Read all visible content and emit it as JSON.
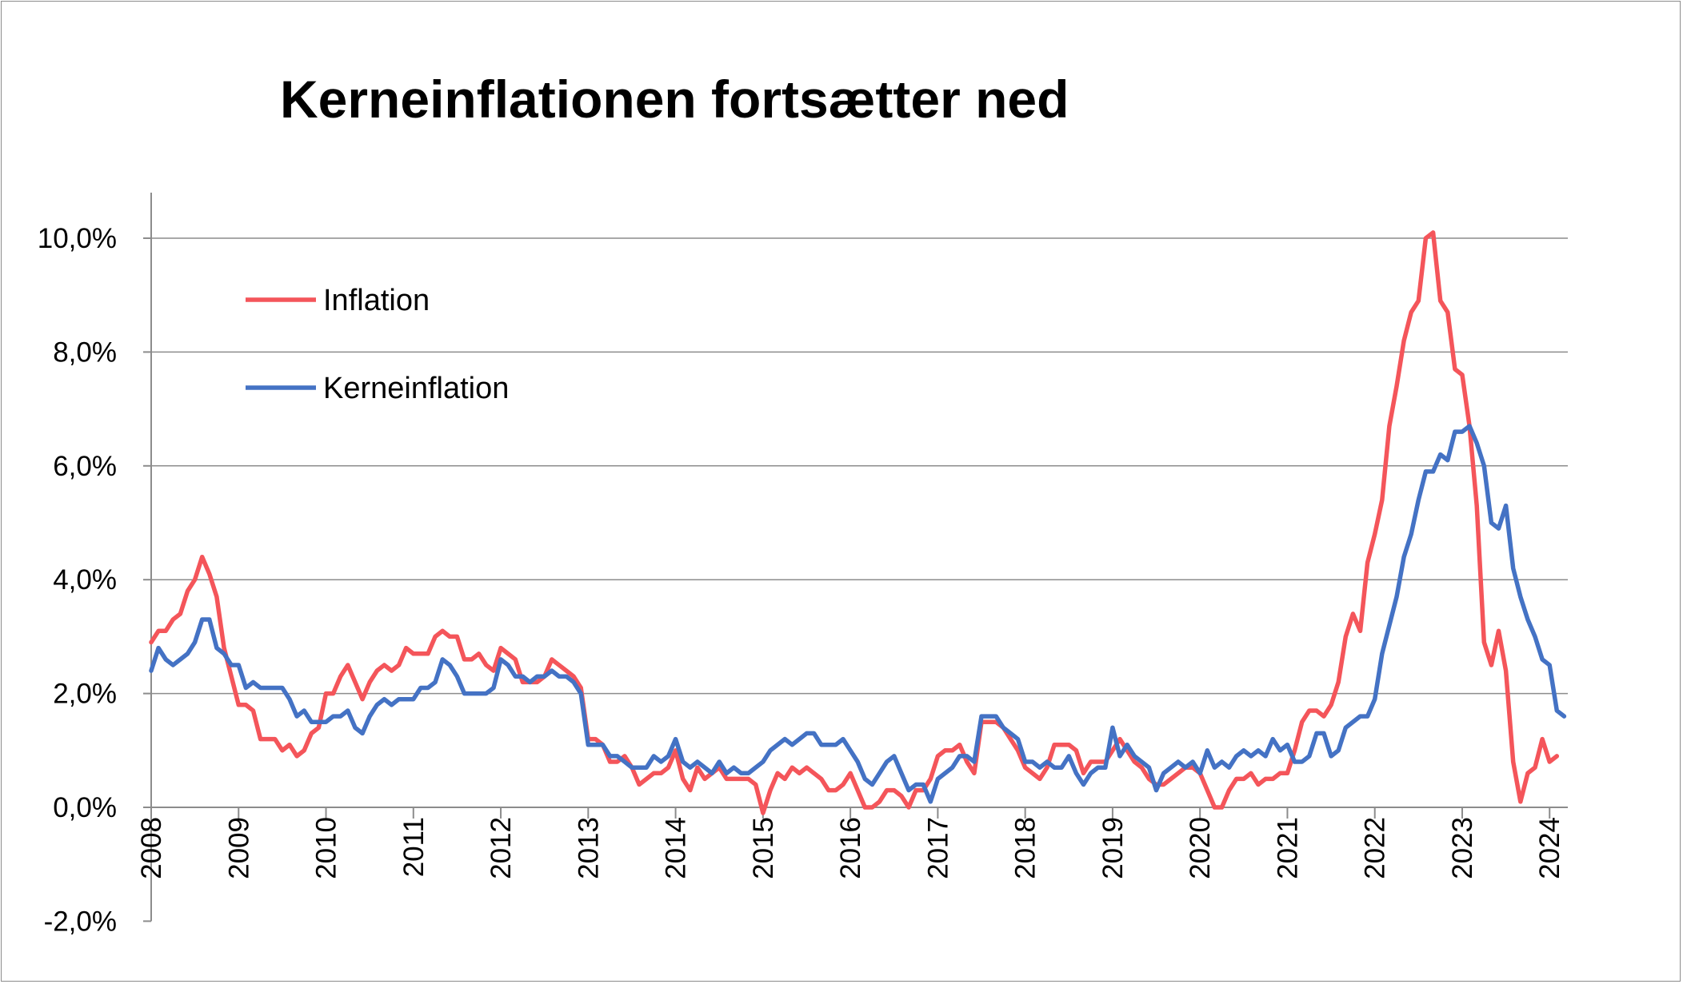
{
  "chart_data": {
    "type": "line",
    "title": "Kerneinflationen fortsætter ned",
    "xlabel": "",
    "ylabel": "",
    "x_start": "2008-01",
    "x_frequency": "monthly",
    "x_ticks": [
      "2008",
      "2009",
      "2010",
      "2011",
      "2012",
      "2013",
      "2014",
      "2015",
      "2016",
      "2017",
      "2018",
      "2019",
      "2020",
      "2021",
      "2022",
      "2023",
      "2024"
    ],
    "y_ticks": [
      "-2,0%",
      "0,0%",
      "2,0%",
      "4,0%",
      "6,0%",
      "8,0%",
      "10,0%"
    ],
    "ylim": [
      -2,
      10.8
    ],
    "y_grid_values": [
      0,
      2,
      4,
      6,
      8,
      10
    ],
    "grid": true,
    "legend_position": "top-left",
    "series": [
      {
        "name": "Inflation",
        "color": "#f4555a",
        "values": [
          2.9,
          3.1,
          3.1,
          3.3,
          3.4,
          3.8,
          4.0,
          4.4,
          4.1,
          3.7,
          2.8,
          2.3,
          1.8,
          1.8,
          1.7,
          1.2,
          1.2,
          1.2,
          1.0,
          1.1,
          0.9,
          1.0,
          1.3,
          1.4,
          2.0,
          2.0,
          2.3,
          2.5,
          2.2,
          1.9,
          2.2,
          2.4,
          2.5,
          2.4,
          2.5,
          2.8,
          2.7,
          2.7,
          2.7,
          3.0,
          3.1,
          3.0,
          3.0,
          2.6,
          2.6,
          2.7,
          2.5,
          2.4,
          2.8,
          2.7,
          2.6,
          2.2,
          2.2,
          2.2,
          2.3,
          2.6,
          2.5,
          2.4,
          2.3,
          2.1,
          1.2,
          1.2,
          1.1,
          0.8,
          0.8,
          0.9,
          0.7,
          0.4,
          0.5,
          0.6,
          0.6,
          0.7,
          1.0,
          0.5,
          0.3,
          0.7,
          0.5,
          0.6,
          0.7,
          0.5,
          0.5,
          0.5,
          0.5,
          0.4,
          -0.1,
          0.3,
          0.6,
          0.5,
          0.7,
          0.6,
          0.7,
          0.6,
          0.5,
          0.3,
          0.3,
          0.4,
          0.6,
          0.3,
          0.0,
          0.0,
          0.1,
          0.3,
          0.3,
          0.2,
          0.0,
          0.3,
          0.3,
          0.5,
          0.9,
          1.0,
          1.0,
          1.1,
          0.8,
          0.6,
          1.5,
          1.5,
          1.5,
          1.4,
          1.2,
          1.0,
          0.7,
          0.6,
          0.5,
          0.7,
          1.1,
          1.1,
          1.1,
          1.0,
          0.6,
          0.8,
          0.8,
          0.8,
          1.0,
          1.2,
          1.0,
          0.8,
          0.7,
          0.5,
          0.4,
          0.4,
          0.5,
          0.6,
          0.7,
          0.7,
          0.6,
          0.3,
          0.0,
          0.0,
          0.3,
          0.5,
          0.5,
          0.6,
          0.4,
          0.5,
          0.5,
          0.6,
          0.6,
          1.0,
          1.5,
          1.7,
          1.7,
          1.6,
          1.8,
          2.2,
          3.0,
          3.4,
          3.1,
          4.3,
          4.8,
          5.4,
          6.7,
          7.4,
          8.2,
          8.7,
          8.9,
          10.0,
          10.1,
          8.9,
          8.7,
          7.7,
          7.6,
          6.7,
          5.3,
          2.9,
          2.5,
          3.1,
          2.4,
          0.8,
          0.1,
          0.6,
          0.7,
          1.2,
          0.8,
          0.9
        ]
      },
      {
        "name": "Kerneinflation",
        "color": "#4472c4",
        "values": [
          2.4,
          2.8,
          2.6,
          2.5,
          2.6,
          2.7,
          2.9,
          3.3,
          3.3,
          2.8,
          2.7,
          2.5,
          2.5,
          2.1,
          2.2,
          2.1,
          2.1,
          2.1,
          2.1,
          1.9,
          1.6,
          1.7,
          1.5,
          1.5,
          1.5,
          1.6,
          1.6,
          1.7,
          1.4,
          1.3,
          1.6,
          1.8,
          1.9,
          1.8,
          1.9,
          1.9,
          1.9,
          2.1,
          2.1,
          2.2,
          2.6,
          2.5,
          2.3,
          2.0,
          2.0,
          2.0,
          2.0,
          2.1,
          2.6,
          2.5,
          2.3,
          2.3,
          2.2,
          2.3,
          2.3,
          2.4,
          2.3,
          2.3,
          2.2,
          2.0,
          1.1,
          1.1,
          1.1,
          0.9,
          0.9,
          0.8,
          0.7,
          0.7,
          0.7,
          0.9,
          0.8,
          0.9,
          1.2,
          0.8,
          0.7,
          0.8,
          0.7,
          0.6,
          0.8,
          0.6,
          0.7,
          0.6,
          0.6,
          0.7,
          0.8,
          1.0,
          1.1,
          1.2,
          1.1,
          1.2,
          1.3,
          1.3,
          1.1,
          1.1,
          1.1,
          1.2,
          1.0,
          0.8,
          0.5,
          0.4,
          0.6,
          0.8,
          0.9,
          0.6,
          0.3,
          0.4,
          0.4,
          0.1,
          0.5,
          0.6,
          0.7,
          0.9,
          0.9,
          0.8,
          1.6,
          1.6,
          1.6,
          1.4,
          1.3,
          1.2,
          0.8,
          0.8,
          0.7,
          0.8,
          0.7,
          0.7,
          0.9,
          0.6,
          0.4,
          0.6,
          0.7,
          0.7,
          1.4,
          0.9,
          1.1,
          0.9,
          0.8,
          0.7,
          0.3,
          0.6,
          0.7,
          0.8,
          0.7,
          0.8,
          0.6,
          1.0,
          0.7,
          0.8,
          0.7,
          0.9,
          1.0,
          0.9,
          1.0,
          0.9,
          1.2,
          1.0,
          1.1,
          0.8,
          0.8,
          0.9,
          1.3,
          1.3,
          0.9,
          1.0,
          1.4,
          1.5,
          1.6,
          1.6,
          1.9,
          2.7,
          3.2,
          3.7,
          4.4,
          4.8,
          5.4,
          5.9,
          5.9,
          6.2,
          6.1,
          6.6,
          6.6,
          6.7,
          6.4,
          6.0,
          5.0,
          4.9,
          5.3,
          4.2,
          3.7,
          3.3,
          3.0,
          2.6,
          2.5,
          1.7,
          1.6
        ]
      }
    ]
  }
}
